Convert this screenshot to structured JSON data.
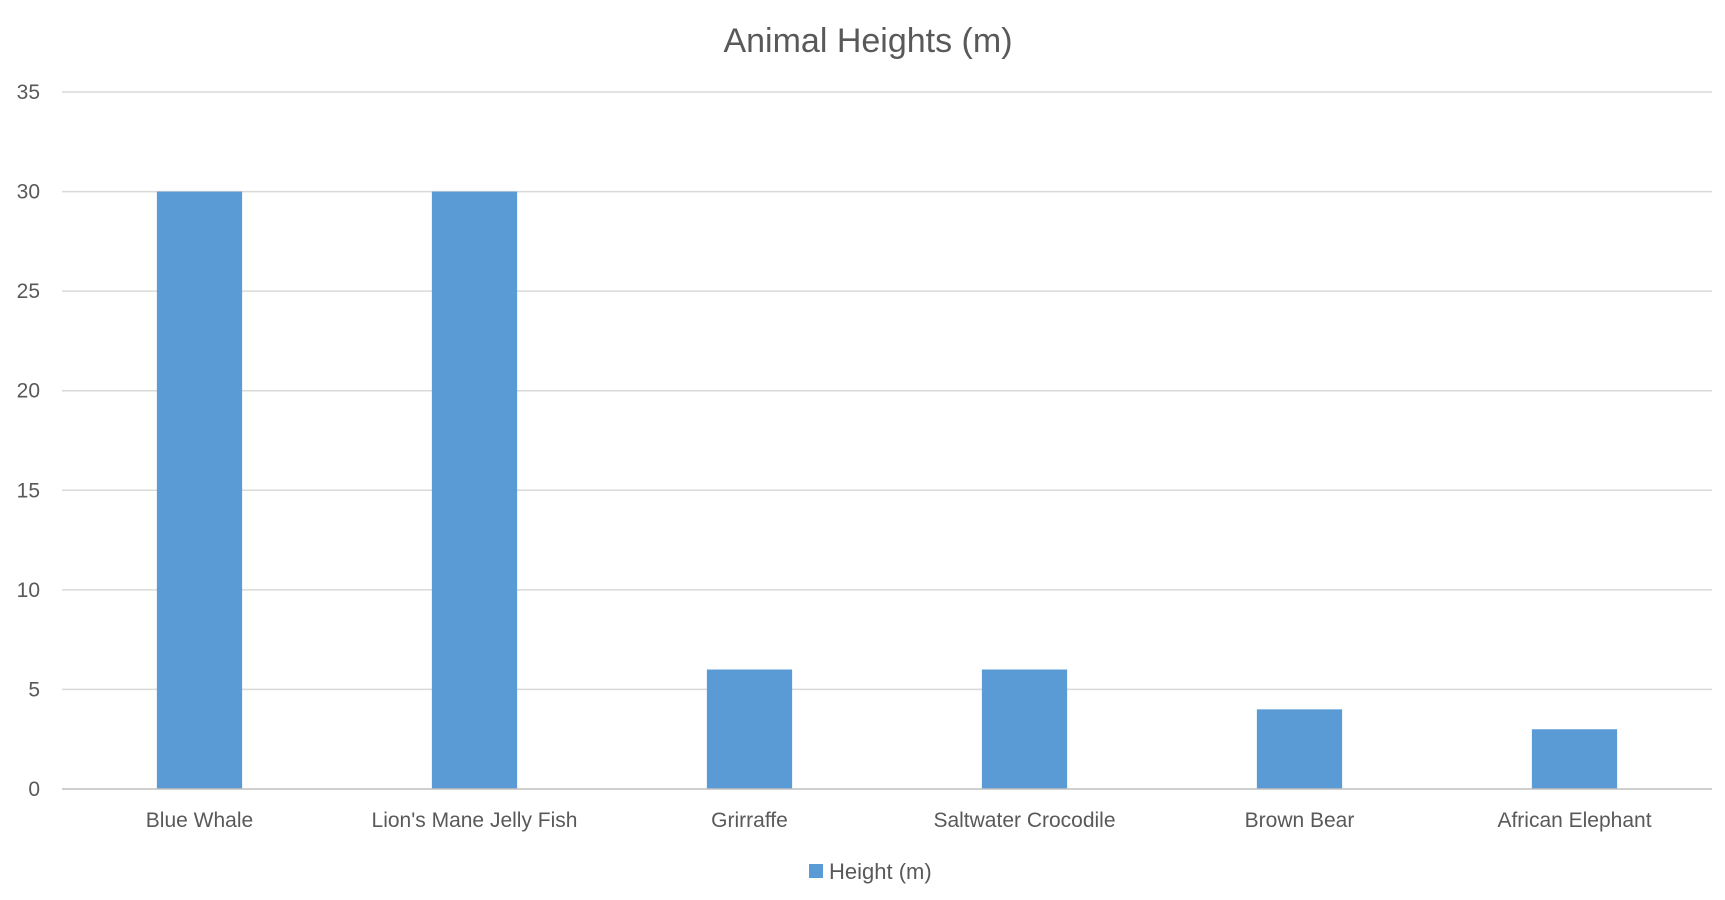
{
  "chart_data": {
    "type": "bar",
    "title": "Animal Heights (m)",
    "xlabel": "",
    "ylabel": "",
    "categories": [
      "Blue Whale",
      "Lion's Mane Jelly Fish",
      "Grirraffe",
      "Saltwater Crocodile",
      "Brown Bear",
      "African Elephant"
    ],
    "series": [
      {
        "name": "Height (m)",
        "values": [
          30,
          30,
          6,
          6,
          4,
          3
        ],
        "color": "#5b9bd5"
      }
    ],
    "ylim": [
      0,
      35
    ],
    "yticks": [
      0,
      5,
      10,
      15,
      20,
      25,
      30,
      35
    ],
    "grid": true,
    "legend_position": "bottom"
  }
}
